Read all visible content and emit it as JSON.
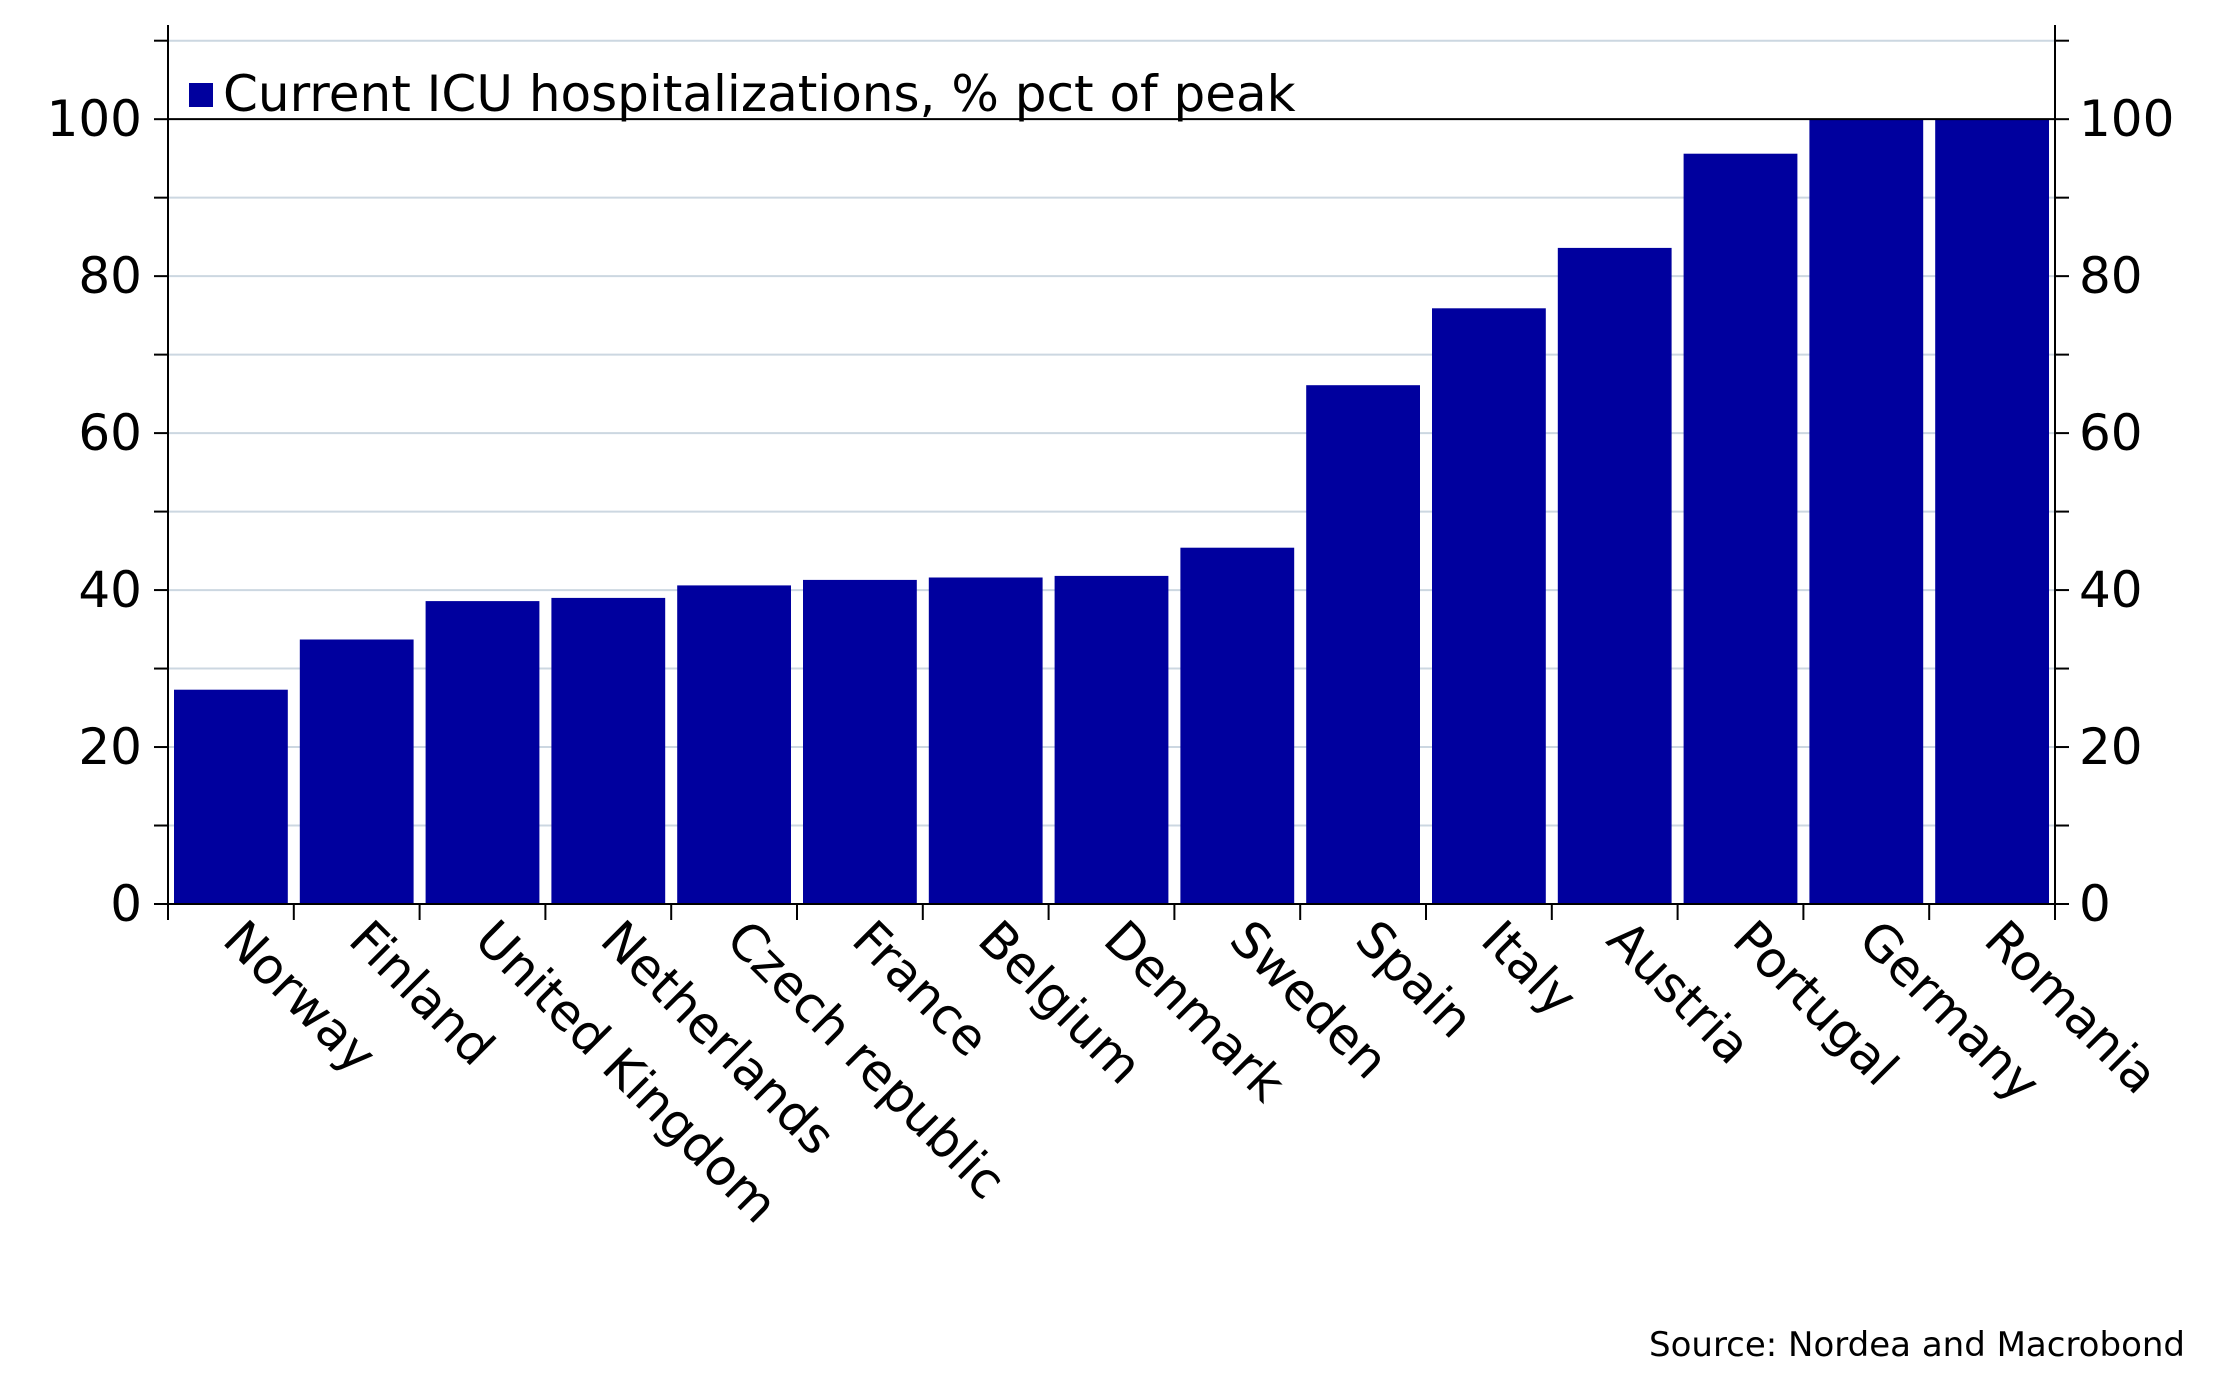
{
  "chart_data": {
    "type": "bar",
    "categories": [
      "Norway",
      "Finland",
      "United Kingdom",
      "Netherlands",
      "Czech republic",
      "France",
      "Belgium",
      "Denmark",
      "Sweden",
      "Spain",
      "Italy",
      "Austria",
      "Portugal",
      "Germany",
      "Romania"
    ],
    "series": [
      {
        "name": "Current ICU hospitalizations, % pct of peak",
        "values": [
          27.3,
          33.7,
          38.6,
          39.0,
          40.6,
          41.3,
          41.6,
          41.8,
          45.4,
          66.1,
          75.9,
          83.6,
          95.6,
          100,
          100
        ]
      }
    ],
    "y_ticks": [
      "0",
      "20",
      "40",
      "60",
      "80",
      "100"
    ],
    "ylim": [
      0,
      112
    ],
    "y_axis_both_sides": true,
    "grid": "horizontal",
    "legend": "top-left",
    "source": "Source: Nordea and Macrobond",
    "colors": {
      "bar": "#00009e",
      "grid": "#ccd7e1",
      "axis": "#000000"
    }
  }
}
